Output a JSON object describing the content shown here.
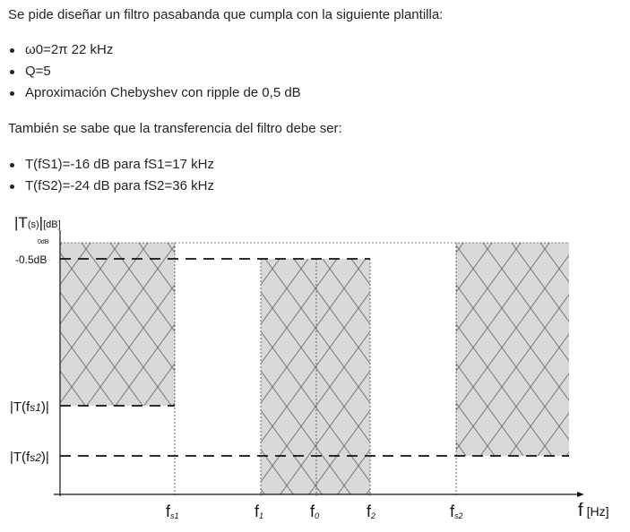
{
  "intro": "Se pide diseñar un filtro pasabanda que cumpla con la siguiente plantilla:",
  "specs": [
    "ω0=2π 22 kHz",
    "Q=5",
    "Aproximación Chebyshev con ripple de 0,5 dB"
  ],
  "transfer_intro": "También se sabe que la transferencia del filtro debe ser:",
  "transfer_points": [
    "T(fS1)=-16 dB para fS1=17 kHz",
    "T(fS2)=-24 dB para fS2=36 kHz"
  ],
  "plot": {
    "y_axis": {
      "main": "|T",
      "sub": "(s)",
      "tail": "|",
      "unit": "[dB]"
    },
    "label_0db": "0dB",
    "label_ripple": "-0.5dB",
    "label_tfs1": {
      "pre": "|T(f",
      "sub": "s1",
      "post": ")|"
    },
    "label_tfs2": {
      "pre": "|T(f",
      "sub": "s2",
      "post": ")|"
    },
    "x_labels": {
      "fs1": {
        "base": "f",
        "sub": "s1"
      },
      "f1": {
        "base": "f",
        "sub": "1"
      },
      "f0": {
        "base": "f",
        "sub": "0"
      },
      "f2": {
        "base": "f",
        "sub": "2"
      },
      "fs2": {
        "base": "f",
        "sub": "s2"
      }
    },
    "x_axis": {
      "symbol": "f",
      "unit": "[Hz]"
    },
    "colors": {
      "hatch_fill": "#d9d9d9",
      "hatch_line": "#6e6e6e",
      "dash": "#111111"
    }
  }
}
